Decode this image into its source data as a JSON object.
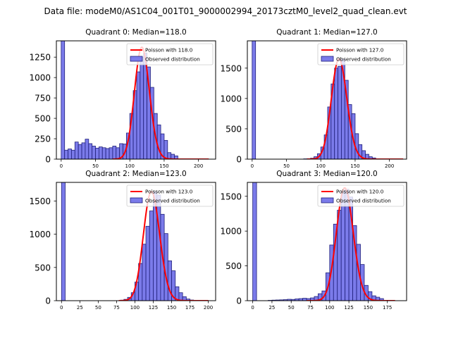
{
  "figure": {
    "title": "Data file: modeM0/AS1C04_001T01_9000002994_20173cztM0_level2_quad_clean.evt"
  },
  "chart_data": [
    {
      "type": "bar",
      "title": "Quadrant 0: Median=118.0",
      "xlabel": "",
      "ylabel": "",
      "xlim": [
        -7,
        225
      ],
      "ylim": [
        0,
        1450
      ],
      "xticks": [
        0,
        50,
        100,
        150,
        200
      ],
      "yticks": [
        0,
        250,
        500,
        750,
        1000,
        1250
      ],
      "legend": {
        "placement": "top-right",
        "line_label": "Poisson with 118.0",
        "bar_label": "Observed distribution"
      },
      "colors": {
        "bars": "#7b7bea",
        "bar_edge": "#1f1f7a",
        "line": "#ff0000"
      },
      "bin_width": 5,
      "bins": [
        {
          "x": 0,
          "y": 1450
        },
        {
          "x": 5,
          "y": 110
        },
        {
          "x": 10,
          "y": 125
        },
        {
          "x": 15,
          "y": 110
        },
        {
          "x": 20,
          "y": 210
        },
        {
          "x": 25,
          "y": 180
        },
        {
          "x": 30,
          "y": 200
        },
        {
          "x": 35,
          "y": 245
        },
        {
          "x": 40,
          "y": 190
        },
        {
          "x": 45,
          "y": 160
        },
        {
          "x": 50,
          "y": 135
        },
        {
          "x": 55,
          "y": 150
        },
        {
          "x": 60,
          "y": 140
        },
        {
          "x": 65,
          "y": 130
        },
        {
          "x": 70,
          "y": 140
        },
        {
          "x": 75,
          "y": 160
        },
        {
          "x": 80,
          "y": 140
        },
        {
          "x": 85,
          "y": 190
        },
        {
          "x": 90,
          "y": 185
        },
        {
          "x": 95,
          "y": 320
        },
        {
          "x": 100,
          "y": 560
        },
        {
          "x": 105,
          "y": 840
        },
        {
          "x": 110,
          "y": 1070
        },
        {
          "x": 115,
          "y": 1250
        },
        {
          "x": 120,
          "y": 1300
        },
        {
          "x": 125,
          "y": 1130
        },
        {
          "x": 130,
          "y": 880
        },
        {
          "x": 135,
          "y": 560
        },
        {
          "x": 140,
          "y": 420
        },
        {
          "x": 145,
          "y": 310
        },
        {
          "x": 150,
          "y": 230
        },
        {
          "x": 155,
          "y": 80
        },
        {
          "x": 160,
          "y": 60
        },
        {
          "x": 165,
          "y": 40
        }
      ],
      "poisson_mean": 118.0,
      "poisson_peak": 1370,
      "curve_range": [
        75,
        215
      ]
    },
    {
      "type": "bar",
      "title": "Quadrant 1: Median=127.0",
      "xlabel": "",
      "ylabel": "",
      "xlim": [
        -7,
        225
      ],
      "ylim": [
        0,
        1950
      ],
      "xticks": [
        0,
        50,
        100,
        150,
        200
      ],
      "yticks": [
        0,
        500,
        1000,
        1500
      ],
      "legend": {
        "placement": "top-right",
        "line_label": "Poisson with 127.0",
        "bar_label": "Observed distribution"
      },
      "colors": {
        "bars": "#7b7bea",
        "bar_edge": "#1f1f7a",
        "line": "#ff0000"
      },
      "bin_width": 5,
      "bins": [
        {
          "x": 0,
          "y": 1950
        },
        {
          "x": 75,
          "y": 5
        },
        {
          "x": 80,
          "y": 8
        },
        {
          "x": 85,
          "y": 15
        },
        {
          "x": 90,
          "y": 40
        },
        {
          "x": 95,
          "y": 90
        },
        {
          "x": 100,
          "y": 200
        },
        {
          "x": 105,
          "y": 400
        },
        {
          "x": 110,
          "y": 860
        },
        {
          "x": 115,
          "y": 1240
        },
        {
          "x": 120,
          "y": 1500
        },
        {
          "x": 125,
          "y": 1530
        },
        {
          "x": 130,
          "y": 1650
        },
        {
          "x": 135,
          "y": 1300
        },
        {
          "x": 140,
          "y": 900
        },
        {
          "x": 145,
          "y": 750
        },
        {
          "x": 150,
          "y": 420
        },
        {
          "x": 155,
          "y": 240
        },
        {
          "x": 160,
          "y": 140
        },
        {
          "x": 165,
          "y": 80
        },
        {
          "x": 170,
          "y": 40
        },
        {
          "x": 175,
          "y": 20
        }
      ],
      "poisson_mean": 127.0,
      "poisson_peak": 1650,
      "curve_range": [
        80,
        220
      ]
    },
    {
      "type": "bar",
      "title": "Quadrant 2: Median=123.0",
      "xlabel": "",
      "ylabel": "",
      "xlim": [
        -7,
        210
      ],
      "ylim": [
        0,
        1780
      ],
      "xticks": [
        0,
        25,
        50,
        75,
        100,
        125,
        150,
        175,
        200
      ],
      "yticks": [
        0,
        500,
        1000,
        1500
      ],
      "legend": {
        "placement": "top-right",
        "line_label": "Poisson with 123.0",
        "bar_label": "Observed distribution"
      },
      "colors": {
        "bars": "#7b7bea",
        "bar_edge": "#1f1f7a",
        "line": "#ff0000"
      },
      "bin_width": 5,
      "bins": [
        {
          "x": 0,
          "y": 1780
        },
        {
          "x": 80,
          "y": 8
        },
        {
          "x": 85,
          "y": 20
        },
        {
          "x": 90,
          "y": 50
        },
        {
          "x": 95,
          "y": 120
        },
        {
          "x": 100,
          "y": 280
        },
        {
          "x": 105,
          "y": 560
        },
        {
          "x": 110,
          "y": 850
        },
        {
          "x": 115,
          "y": 1120
        },
        {
          "x": 120,
          "y": 1350
        },
        {
          "x": 125,
          "y": 1640
        },
        {
          "x": 130,
          "y": 1590
        },
        {
          "x": 135,
          "y": 1300
        },
        {
          "x": 140,
          "y": 1010
        },
        {
          "x": 145,
          "y": 600
        },
        {
          "x": 150,
          "y": 450
        },
        {
          "x": 155,
          "y": 210
        },
        {
          "x": 160,
          "y": 120
        },
        {
          "x": 165,
          "y": 60
        },
        {
          "x": 170,
          "y": 25
        },
        {
          "x": 175,
          "y": 10
        }
      ],
      "poisson_mean": 123.0,
      "poisson_peak": 1640,
      "curve_range": [
        78,
        200
      ]
    },
    {
      "type": "bar",
      "title": "Quadrant 3: Median=120.0",
      "xlabel": "",
      "ylabel": "",
      "xlim": [
        -7,
        200
      ],
      "ylim": [
        0,
        1700
      ],
      "xticks": [
        0,
        25,
        50,
        75,
        100,
        125,
        150,
        175
      ],
      "yticks": [
        0,
        500,
        1000,
        1500
      ],
      "legend": {
        "placement": "top-right",
        "line_label": "Poisson with 120.0",
        "bar_label": "Observed distribution"
      },
      "colors": {
        "bars": "#7b7bea",
        "bar_edge": "#1f1f7a",
        "line": "#ff0000"
      },
      "bin_width": 5,
      "bins": [
        {
          "x": 0,
          "y": 1700
        },
        {
          "x": 20,
          "y": 5
        },
        {
          "x": 25,
          "y": 8
        },
        {
          "x": 30,
          "y": 10
        },
        {
          "x": 35,
          "y": 12
        },
        {
          "x": 40,
          "y": 15
        },
        {
          "x": 45,
          "y": 20
        },
        {
          "x": 50,
          "y": 18
        },
        {
          "x": 55,
          "y": 25
        },
        {
          "x": 60,
          "y": 30
        },
        {
          "x": 65,
          "y": 35
        },
        {
          "x": 70,
          "y": 30
        },
        {
          "x": 75,
          "y": 40
        },
        {
          "x": 80,
          "y": 60
        },
        {
          "x": 85,
          "y": 100
        },
        {
          "x": 90,
          "y": 140
        },
        {
          "x": 95,
          "y": 400
        },
        {
          "x": 100,
          "y": 800
        },
        {
          "x": 105,
          "y": 1100
        },
        {
          "x": 110,
          "y": 1300
        },
        {
          "x": 115,
          "y": 1580
        },
        {
          "x": 120,
          "y": 1600
        },
        {
          "x": 125,
          "y": 1490
        },
        {
          "x": 130,
          "y": 1080
        },
        {
          "x": 135,
          "y": 810
        },
        {
          "x": 140,
          "y": 520
        },
        {
          "x": 145,
          "y": 220
        },
        {
          "x": 150,
          "y": 130
        },
        {
          "x": 155,
          "y": 70
        },
        {
          "x": 160,
          "y": 50
        },
        {
          "x": 165,
          "y": 30
        }
      ],
      "poisson_mean": 120.0,
      "poisson_peak": 1620,
      "curve_range": [
        70,
        185
      ]
    }
  ]
}
